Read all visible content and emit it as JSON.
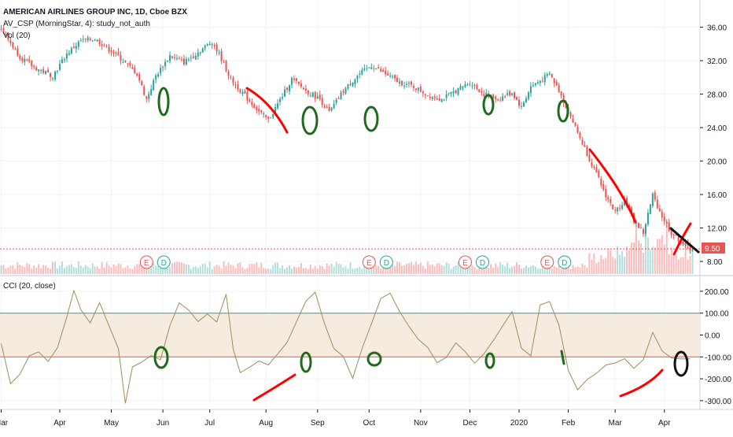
{
  "legend": {
    "symbol_line": "AMERICAN AIRLINES GROUP INC, 1D, Cboe BZX",
    "study_line": "AV_CSP (MorningStar, 4): study_not_auth",
    "volume_line": "Vol (20)",
    "cci_line": "CCI (20, close)"
  },
  "colors": {
    "up": "#26a69a",
    "down": "#ef5350",
    "price_line": "#ef5350",
    "cci_line": "#a58a5a",
    "cci_band": "#f5ecdf",
    "cci_upper": "#26a69a",
    "cci_lower": "#ef5350",
    "annot_red": "#ff0000",
    "annot_green": "#1e6b1e",
    "annot_black": "#111111"
  },
  "current_price_label": "9.50",
  "chart_data": [
    {
      "type": "candlestick",
      "title": "AMERICAN AIRLINES GROUP INC, 1D, Cboe BZX",
      "y_ticks": [
        "36.00",
        "32.00",
        "28.00",
        "24.00",
        "20.00",
        "16.00",
        "12.00",
        "8.00"
      ],
      "ylim": [
        6.5,
        38.5
      ],
      "x_ticks": [
        "Mar",
        "Apr",
        "May",
        "Jun",
        "Jul",
        "Aug",
        "Sep",
        "Oct",
        "Nov",
        "Dec",
        "2020",
        "Feb",
        "Mar",
        "Apr"
      ],
      "last_price": 9.5,
      "close_series": [
        {
          "x": 0,
          "y": 35.8
        },
        {
          "x": 8,
          "y": 32.5
        },
        {
          "x": 14,
          "y": 31.2
        },
        {
          "x": 22,
          "y": 30.2
        },
        {
          "x": 28,
          "y": 32.8
        },
        {
          "x": 34,
          "y": 34.4
        },
        {
          "x": 40,
          "y": 34.6
        },
        {
          "x": 46,
          "y": 33.4
        },
        {
          "x": 52,
          "y": 32.0
        },
        {
          "x": 58,
          "y": 30.4
        },
        {
          "x": 62,
          "y": 27.4
        },
        {
          "x": 66,
          "y": 30.2
        },
        {
          "x": 72,
          "y": 32.6
        },
        {
          "x": 78,
          "y": 31.8
        },
        {
          "x": 84,
          "y": 33.0
        },
        {
          "x": 90,
          "y": 34.3
        },
        {
          "x": 94,
          "y": 32.2
        },
        {
          "x": 98,
          "y": 29.8
        },
        {
          "x": 104,
          "y": 27.8
        },
        {
          "x": 110,
          "y": 25.9
        },
        {
          "x": 114,
          "y": 24.9
        },
        {
          "x": 118,
          "y": 26.8
        },
        {
          "x": 124,
          "y": 29.8
        },
        {
          "x": 130,
          "y": 28.4
        },
        {
          "x": 136,
          "y": 27.4
        },
        {
          "x": 140,
          "y": 25.8
        },
        {
          "x": 146,
          "y": 28.4
        },
        {
          "x": 152,
          "y": 30.2
        },
        {
          "x": 158,
          "y": 31.4
        },
        {
          "x": 164,
          "y": 30.4
        },
        {
          "x": 170,
          "y": 29.4
        },
        {
          "x": 176,
          "y": 28.9
        },
        {
          "x": 182,
          "y": 27.9
        },
        {
          "x": 188,
          "y": 27.4
        },
        {
          "x": 194,
          "y": 28.4
        },
        {
          "x": 200,
          "y": 29.4
        },
        {
          "x": 206,
          "y": 28.0
        },
        {
          "x": 212,
          "y": 27.4
        },
        {
          "x": 218,
          "y": 28.2
        },
        {
          "x": 222,
          "y": 26.4
        },
        {
          "x": 226,
          "y": 28.9
        },
        {
          "x": 230,
          "y": 29.6
        },
        {
          "x": 234,
          "y": 30.4
        },
        {
          "x": 238,
          "y": 28.4
        },
        {
          "x": 242,
          "y": 25.9
        },
        {
          "x": 246,
          "y": 23.4
        },
        {
          "x": 250,
          "y": 20.9
        },
        {
          "x": 254,
          "y": 18.4
        },
        {
          "x": 258,
          "y": 15.9
        },
        {
          "x": 262,
          "y": 13.9
        },
        {
          "x": 266,
          "y": 15.4
        },
        {
          "x": 270,
          "y": 12.9
        },
        {
          "x": 274,
          "y": 11.4
        },
        {
          "x": 278,
          "y": 15.9
        },
        {
          "x": 282,
          "y": 13.4
        },
        {
          "x": 286,
          "y": 11.4
        },
        {
          "x": 290,
          "y": 10.4
        },
        {
          "x": 294,
          "y": 9.5
        }
      ]
    },
    {
      "type": "bar",
      "title": "Vol (20)",
      "note": "volume histogram, relative heights"
    },
    {
      "type": "line",
      "title": "CCI (20, close)",
      "y_ticks": [
        "200.00",
        "100.00",
        "0.00",
        "-100.00",
        "-200.00",
        "-300.00"
      ],
      "ylim": [
        -340,
        250
      ],
      "band": [
        -100,
        100
      ],
      "series": [
        {
          "x": 0,
          "y": -40
        },
        {
          "x": 4,
          "y": -220
        },
        {
          "x": 8,
          "y": -180
        },
        {
          "x": 12,
          "y": -100
        },
        {
          "x": 16,
          "y": -80
        },
        {
          "x": 20,
          "y": -120
        },
        {
          "x": 24,
          "y": -60
        },
        {
          "x": 28,
          "y": 80
        },
        {
          "x": 31,
          "y": 200
        },
        {
          "x": 34,
          "y": 120
        },
        {
          "x": 38,
          "y": 60
        },
        {
          "x": 42,
          "y": 150
        },
        {
          "x": 46,
          "y": 40
        },
        {
          "x": 50,
          "y": -60
        },
        {
          "x": 53,
          "y": -310
        },
        {
          "x": 56,
          "y": -150
        },
        {
          "x": 60,
          "y": -120
        },
        {
          "x": 64,
          "y": -90
        },
        {
          "x": 68,
          "y": -110
        },
        {
          "x": 72,
          "y": 40
        },
        {
          "x": 76,
          "y": 150
        },
        {
          "x": 80,
          "y": 110
        },
        {
          "x": 84,
          "y": 60
        },
        {
          "x": 88,
          "y": 100
        },
        {
          "x": 92,
          "y": 60
        },
        {
          "x": 96,
          "y": 190
        },
        {
          "x": 99,
          "y": -60
        },
        {
          "x": 102,
          "y": -170
        },
        {
          "x": 106,
          "y": -150
        },
        {
          "x": 110,
          "y": -120
        },
        {
          "x": 114,
          "y": -140
        },
        {
          "x": 118,
          "y": -90
        },
        {
          "x": 122,
          "y": -30
        },
        {
          "x": 126,
          "y": 60
        },
        {
          "x": 130,
          "y": 150
        },
        {
          "x": 134,
          "y": 200
        },
        {
          "x": 138,
          "y": 50
        },
        {
          "x": 142,
          "y": -60
        },
        {
          "x": 146,
          "y": -100
        },
        {
          "x": 150,
          "y": -200
        },
        {
          "x": 154,
          "y": -60
        },
        {
          "x": 158,
          "y": 50
        },
        {
          "x": 162,
          "y": 170
        },
        {
          "x": 166,
          "y": 190
        },
        {
          "x": 170,
          "y": 110
        },
        {
          "x": 174,
          "y": 40
        },
        {
          "x": 178,
          "y": -20
        },
        {
          "x": 182,
          "y": -60
        },
        {
          "x": 186,
          "y": -130
        },
        {
          "x": 190,
          "y": -100
        },
        {
          "x": 194,
          "y": -40
        },
        {
          "x": 198,
          "y": -80
        },
        {
          "x": 202,
          "y": -130
        },
        {
          "x": 206,
          "y": -90
        },
        {
          "x": 210,
          "y": -30
        },
        {
          "x": 214,
          "y": 40
        },
        {
          "x": 218,
          "y": 110
        },
        {
          "x": 222,
          "y": -60
        },
        {
          "x": 226,
          "y": -90
        },
        {
          "x": 230,
          "y": 140
        },
        {
          "x": 234,
          "y": 150
        },
        {
          "x": 238,
          "y": 50
        },
        {
          "x": 242,
          "y": -160
        },
        {
          "x": 246,
          "y": -250
        },
        {
          "x": 250,
          "y": -200
        },
        {
          "x": 254,
          "y": -170
        },
        {
          "x": 258,
          "y": -140
        },
        {
          "x": 262,
          "y": -130
        },
        {
          "x": 266,
          "y": -110
        },
        {
          "x": 270,
          "y": -150
        },
        {
          "x": 274,
          "y": -110
        },
        {
          "x": 278,
          "y": 10
        },
        {
          "x": 282,
          "y": -70
        },
        {
          "x": 286,
          "y": -100
        },
        {
          "x": 290,
          "y": -110
        },
        {
          "x": 294,
          "y": -105
        }
      ]
    }
  ],
  "event_markers": [
    {
      "x": 62,
      "labels": [
        "E",
        "D"
      ]
    },
    {
      "x": 157,
      "labels": [
        "E",
        "D"
      ]
    },
    {
      "x": 198,
      "labels": [
        "E",
        "D"
      ]
    },
    {
      "x": 233,
      "labels": [
        "E",
        "D"
      ]
    }
  ],
  "month_ticks": [
    {
      "label": "Mar",
      "x": 0
    },
    {
      "label": "Apr",
      "x": 25
    },
    {
      "label": "May",
      "x": 47
    },
    {
      "label": "Jun",
      "x": 69
    },
    {
      "label": "Jul",
      "x": 89
    },
    {
      "label": "Aug",
      "x": 113
    },
    {
      "label": "Sep",
      "x": 135
    },
    {
      "label": "Oct",
      "x": 157
    },
    {
      "label": "Nov",
      "x": 179
    },
    {
      "label": "Dec",
      "x": 200
    },
    {
      "label": "2020",
      "x": 221
    },
    {
      "label": "Feb",
      "x": 242
    },
    {
      "label": "Mar",
      "x": 262
    },
    {
      "label": "Apr",
      "x": 283
    }
  ]
}
